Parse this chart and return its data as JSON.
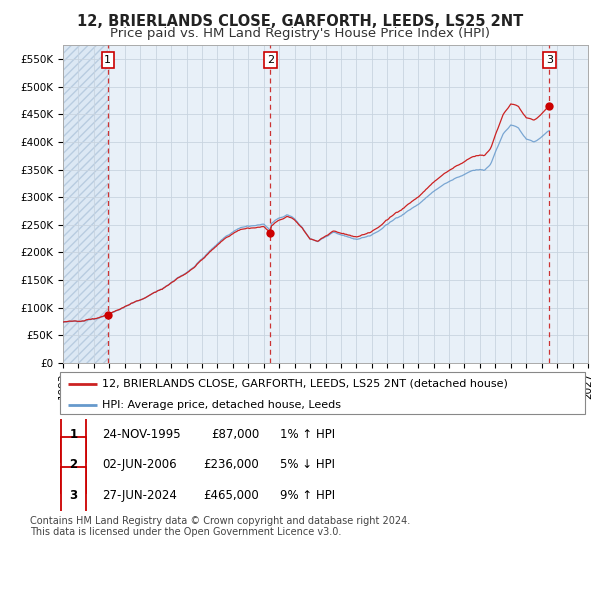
{
  "title": "12, BRIERLANDS CLOSE, GARFORTH, LEEDS, LS25 2NT",
  "subtitle": "Price paid vs. HM Land Registry's House Price Index (HPI)",
  "xlim_years": [
    1993.0,
    2027.0
  ],
  "ylim": [
    0,
    575000
  ],
  "yticks": [
    0,
    50000,
    100000,
    150000,
    200000,
    250000,
    300000,
    350000,
    400000,
    450000,
    500000,
    550000
  ],
  "ytick_labels": [
    "£0",
    "£50K",
    "£100K",
    "£150K",
    "£200K",
    "£250K",
    "£300K",
    "£350K",
    "£400K",
    "£450K",
    "£500K",
    "£550K"
  ],
  "xticks": [
    1993,
    1994,
    1995,
    1996,
    1997,
    1998,
    1999,
    2000,
    2001,
    2002,
    2003,
    2004,
    2005,
    2006,
    2007,
    2008,
    2009,
    2010,
    2011,
    2012,
    2013,
    2014,
    2015,
    2016,
    2017,
    2018,
    2019,
    2020,
    2021,
    2022,
    2023,
    2024,
    2025,
    2026,
    2027
  ],
  "background_color": "#ffffff",
  "plot_bg_color": "#e8f0f8",
  "hatch_color": "#c8d8e8",
  "pre_sale_bg": "#dce6f0",
  "grid_color": "#c8d4e0",
  "sale_dates": [
    1995.9,
    2006.42,
    2024.49
  ],
  "sale_prices": [
    87000,
    236000,
    465000
  ],
  "sale_labels": [
    "1",
    "2",
    "3"
  ],
  "sale_vline_color": "#cc3333",
  "sale_dot_color": "#cc0000",
  "red_line_color": "#cc2222",
  "blue_line_color": "#6699cc",
  "legend_label_red": "12, BRIERLANDS CLOSE, GARFORTH, LEEDS, LS25 2NT (detached house)",
  "legend_label_blue": "HPI: Average price, detached house, Leeds",
  "table_rows": [
    {
      "num": "1",
      "date": "24-NOV-1995",
      "price": "£87,000",
      "hpi": "1% ↑ HPI"
    },
    {
      "num": "2",
      "date": "02-JUN-2006",
      "price": "£236,000",
      "hpi": "5% ↓ HPI"
    },
    {
      "num": "3",
      "date": "27-JUN-2024",
      "price": "£465,000",
      "hpi": "9% ↑ HPI"
    }
  ],
  "footer_text": "Contains HM Land Registry data © Crown copyright and database right 2024.\nThis data is licensed under the Open Government Licence v3.0.",
  "title_fontsize": 10.5,
  "subtitle_fontsize": 9.5,
  "tick_fontsize": 7.5,
  "legend_fontsize": 8,
  "table_fontsize": 8.5
}
